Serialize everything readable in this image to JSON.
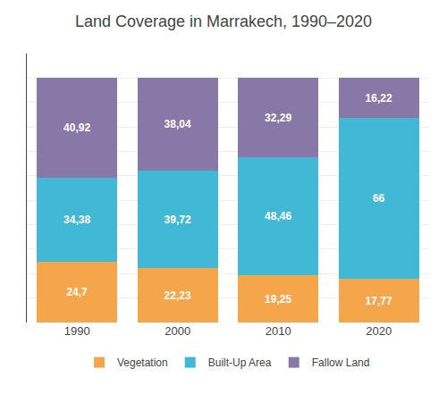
{
  "chart_data": {
    "type": "bar",
    "title": "Land Coverage in Marrakech, 1990–2020",
    "categories": [
      "1990",
      "2000",
      "2010",
      "2020"
    ],
    "series": [
      {
        "name": "Vegetation",
        "color": "#F5A54A",
        "values": [
          24.7,
          22.23,
          19.25,
          17.77
        ],
        "value_labels": [
          "24,7",
          "22,23",
          "19,25",
          "17,77"
        ]
      },
      {
        "name": "Built-Up Area",
        "color": "#41B8D5",
        "values": [
          34.38,
          39.72,
          48.46,
          66.0
        ],
        "value_labels": [
          "34,38",
          "39,72",
          "48,46",
          "66"
        ]
      },
      {
        "name": "Fallow Land",
        "color": "#8878A8",
        "values": [
          40.92,
          38.04,
          32.29,
          16.22
        ],
        "value_labels": [
          "40,92",
          "38,04",
          "32,29",
          "16,22"
        ]
      }
    ],
    "stacked": true,
    "data_labels": true,
    "ylim": [
      0,
      110
    ],
    "yticks": [
      0,
      10,
      20,
      30,
      40,
      50,
      60,
      70,
      80,
      90,
      100
    ],
    "grid": true,
    "tick_labels": "x",
    "legend": "bottom"
  }
}
